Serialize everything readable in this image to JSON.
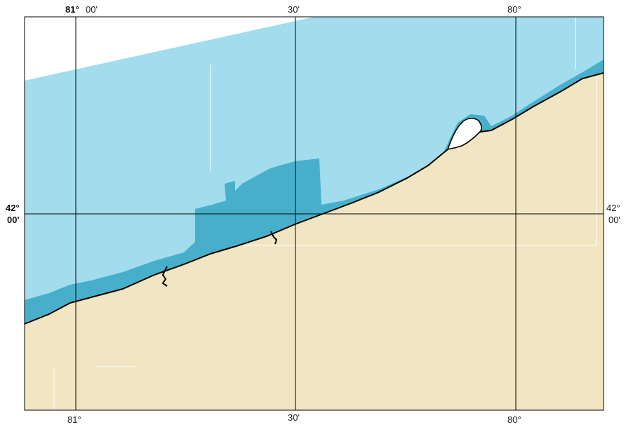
{
  "map": {
    "colors": {
      "land": "#f1e5c2",
      "shallow_water": "#48afcb",
      "deep_water": "#a2dced",
      "grid": "#000000",
      "frame": "#000000"
    },
    "top_labels": {
      "lon_81_deg": "81°",
      "lon_81_min": "00'",
      "lon_30": "30'",
      "lon_80": "80°"
    },
    "bottom_labels": {
      "lon_81": "81°",
      "lon_30": "30'",
      "lon_80": "80°"
    },
    "left_labels": {
      "lat_deg": "42°",
      "lat_min": "00'"
    },
    "right_labels": {
      "lat_deg": "42°",
      "lat_min": "00'"
    }
  }
}
